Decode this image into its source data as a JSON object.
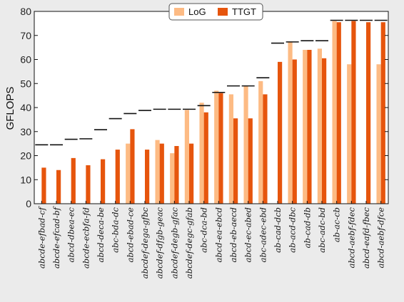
{
  "chart_data": {
    "type": "bar",
    "ylabel": "GFLOPS",
    "xlabel": "",
    "ylim": [
      0,
      80
    ],
    "yticks": [
      "0",
      "10",
      "20",
      "30",
      "40",
      "50",
      "60",
      "70",
      "80"
    ],
    "grid": false,
    "legend_position": "top-center",
    "categories": [
      "abcde-efbad-cf",
      "abcde-efcad-bf",
      "abcd-dbea-ec",
      "abcde-ecbfa-fd",
      "abcd-deca-be",
      "abc-bda-dc",
      "abcd-ebad-ce",
      "abcdef-dega-gfbc",
      "abcdef-dfgb-geac",
      "abcdef-degb-gfac",
      "abcdef-degc-gfab",
      "abc-dca-bd",
      "abcd-ea-ebcd",
      "abcd-eb-aecd",
      "abcd-ec-abed",
      "abc-adec-ebd",
      "ab-cad-dcb",
      "ab-acd-dbc",
      "ab-cad-db",
      "abc-adc-bd",
      "ab-ac-cb",
      "abcd-aebf-fdec",
      "abcd-eafd-fbec",
      "abcd-aebf-dfce"
    ],
    "series": [
      {
        "name": "LoG",
        "color": "#fdbb84",
        "values": [
          0,
          0,
          0,
          0,
          0,
          0,
          25,
          0,
          26.5,
          21,
          39,
          42,
          47,
          45.5,
          49,
          51,
          0,
          67.5,
          64,
          64.5,
          76,
          58,
          0,
          58
        ]
      },
      {
        "name": "TTGT",
        "color": "#e6550d",
        "values": [
          15,
          14,
          19,
          16,
          18.5,
          22.5,
          31,
          22.5,
          25,
          24,
          25,
          38,
          46,
          35.5,
          35.5,
          45.5,
          59,
          60,
          64,
          60.5,
          75.5,
          76,
          75.5,
          75.5
        ]
      }
    ],
    "reference_marks": [
      24.5,
      24.5,
      26.8,
      27,
      30.8,
      35.4,
      37.5,
      38.8,
      39.3,
      39.3,
      39.3,
      40.8,
      46.3,
      49,
      49,
      52.4,
      66.8,
      67.3,
      67.8,
      67.8,
      76.3,
      76.3,
      76.3,
      76.3
    ],
    "reference_color": "#111111"
  }
}
